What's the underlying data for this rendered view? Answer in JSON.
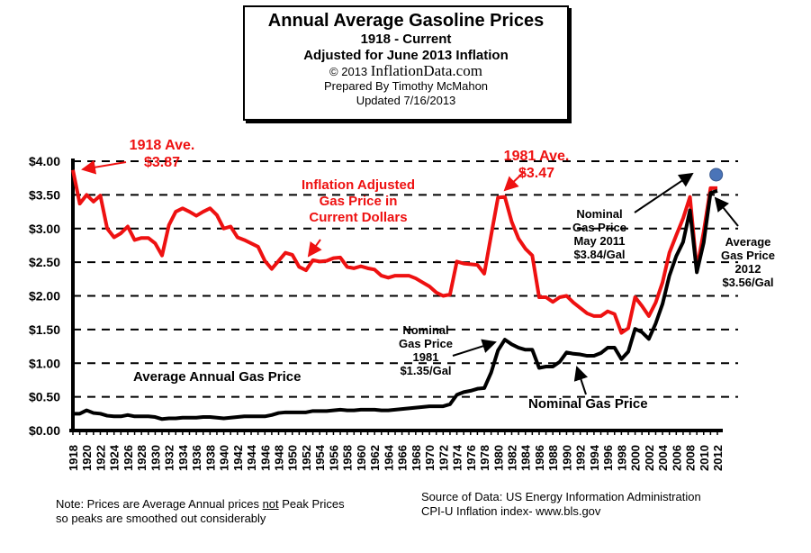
{
  "title_box": {
    "title": "Annual Average Gasoline Prices",
    "subtitle1": "1918 - Current",
    "subtitle2": "Adjusted for June 2013 Inflation",
    "copyright": "© 2013",
    "site": "InflationData.com",
    "prepared_by": "Prepared  By Timothy McMahon",
    "updated": "Updated  7/16/2013"
  },
  "footer": {
    "note_line1": "Note: Prices are Average Annual prices ",
    "note_not": "not",
    "note_line1_end": " Peak Prices",
    "note_line2": "so peaks are smoothed out considerably",
    "source_line1": "Source of Data:  US Energy Information Administration",
    "source_line2": "CPI-U Inflation index-    www.bls.gov"
  },
  "chart_data": {
    "type": "line",
    "title": "Annual Average Gasoline Prices",
    "ylim": [
      0,
      4
    ],
    "yticks": [
      "$0.00",
      "$0.50",
      "$1.00",
      "$1.50",
      "$2.00",
      "$2.50",
      "$3.00",
      "$3.50",
      "$4.00"
    ],
    "xlim": [
      1918,
      2012
    ],
    "grid": "horizontal dashed",
    "colors": {
      "adjusted": "#ee1111",
      "nominal": "#000000",
      "marker": "#4a74b8"
    },
    "x": [
      1918,
      1919,
      1920,
      1921,
      1922,
      1923,
      1924,
      1925,
      1926,
      1927,
      1928,
      1929,
      1930,
      1931,
      1932,
      1933,
      1934,
      1935,
      1936,
      1937,
      1938,
      1939,
      1940,
      1941,
      1942,
      1943,
      1944,
      1945,
      1946,
      1947,
      1948,
      1949,
      1950,
      1951,
      1952,
      1953,
      1954,
      1955,
      1956,
      1957,
      1958,
      1959,
      1960,
      1961,
      1962,
      1963,
      1964,
      1965,
      1966,
      1967,
      1968,
      1969,
      1970,
      1971,
      1972,
      1973,
      1974,
      1975,
      1976,
      1977,
      1978,
      1979,
      1980,
      1981,
      1982,
      1983,
      1984,
      1985,
      1986,
      1987,
      1988,
      1989,
      1990,
      1991,
      1992,
      1993,
      1994,
      1995,
      1996,
      1997,
      1998,
      1999,
      2000,
      2001,
      2002,
      2003,
      2004,
      2005,
      2006,
      2007,
      2008,
      2009,
      2010,
      2011,
      2012
    ],
    "series": [
      {
        "key": "adjusted",
        "values": [
          3.87,
          3.37,
          3.5,
          3.4,
          3.49,
          3.0,
          2.87,
          2.93,
          3.03,
          2.83,
          2.86,
          2.86,
          2.78,
          2.6,
          3.05,
          3.25,
          3.3,
          3.25,
          3.19,
          3.25,
          3.3,
          3.2,
          3.0,
          3.03,
          2.87,
          2.83,
          2.78,
          2.73,
          2.52,
          2.4,
          2.52,
          2.64,
          2.61,
          2.43,
          2.38,
          2.53,
          2.51,
          2.52,
          2.56,
          2.57,
          2.43,
          2.41,
          2.44,
          2.41,
          2.39,
          2.3,
          2.27,
          2.3,
          2.3,
          2.3,
          2.26,
          2.2,
          2.14,
          2.05,
          2.0,
          2.02,
          2.51,
          2.48,
          2.47,
          2.46,
          2.33,
          2.9,
          3.46,
          3.47,
          3.1,
          2.85,
          2.7,
          2.6,
          1.98,
          1.98,
          1.91,
          1.98,
          2.0,
          1.9,
          1.82,
          1.74,
          1.7,
          1.7,
          1.77,
          1.73,
          1.45,
          1.52,
          1.98,
          1.85,
          1.7,
          1.9,
          2.2,
          2.64,
          2.9,
          3.15,
          3.47,
          2.4,
          2.95,
          3.6,
          3.6
        ]
      },
      {
        "key": "nominal",
        "values": [
          0.25,
          0.25,
          0.3,
          0.26,
          0.25,
          0.22,
          0.21,
          0.21,
          0.23,
          0.21,
          0.21,
          0.21,
          0.2,
          0.17,
          0.18,
          0.18,
          0.19,
          0.19,
          0.19,
          0.2,
          0.2,
          0.19,
          0.18,
          0.19,
          0.2,
          0.21,
          0.21,
          0.21,
          0.21,
          0.23,
          0.26,
          0.27,
          0.27,
          0.27,
          0.27,
          0.29,
          0.29,
          0.29,
          0.3,
          0.31,
          0.3,
          0.3,
          0.31,
          0.31,
          0.31,
          0.3,
          0.3,
          0.31,
          0.32,
          0.33,
          0.34,
          0.35,
          0.36,
          0.36,
          0.36,
          0.39,
          0.53,
          0.57,
          0.59,
          0.62,
          0.63,
          0.86,
          1.19,
          1.35,
          1.28,
          1.23,
          1.2,
          1.2,
          0.93,
          0.95,
          0.95,
          1.02,
          1.16,
          1.14,
          1.13,
          1.11,
          1.11,
          1.15,
          1.23,
          1.23,
          1.06,
          1.17,
          1.51,
          1.46,
          1.36,
          1.59,
          1.88,
          2.3,
          2.59,
          2.8,
          3.27,
          2.35,
          2.79,
          3.53,
          3.56
        ]
      }
    ],
    "marker": {
      "x": 2011.3,
      "y": 3.84
    },
    "annotations": {
      "a1918": [
        "1918 Ave.",
        "$3.87"
      ],
      "a1981": [
        "1981 Ave.",
        "$3.47"
      ],
      "adjusted_label": [
        "Inflation Adjusted",
        "Gas Price in",
        "Current Dollars"
      ],
      "avg_label": "Average Annual Gas Price",
      "nominal_1981": [
        "Nominal",
        "Gas Price",
        "1981",
        "$1.35/Gal"
      ],
      "nominal_2011": [
        "Nominal",
        "Gas Price",
        "May 2011",
        "$3.84/Gal"
      ],
      "avg_2012": [
        "Average",
        "Gas Price",
        "2012",
        "$3.56/Gal"
      ],
      "nominal_label": "Nominal Gas Price"
    }
  }
}
